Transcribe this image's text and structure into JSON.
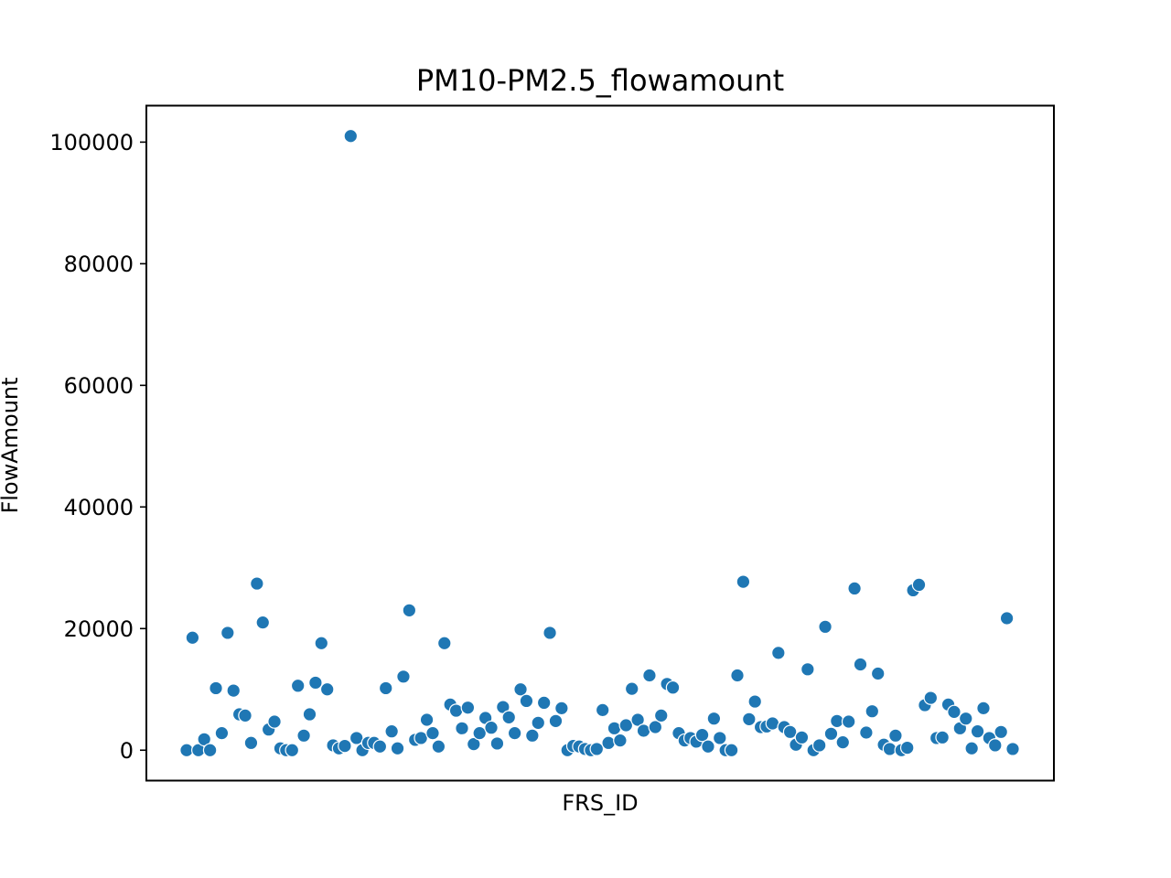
{
  "chart_data": {
    "type": "scatter",
    "title": "PM10-PM2.5_flowamount",
    "xlabel": "FRS_ID",
    "ylabel": "FlowAmount",
    "x_tick_labels_shown": false,
    "ylim": [
      -5000,
      106000
    ],
    "yticks": [
      0,
      20000,
      40000,
      60000,
      80000,
      100000
    ],
    "ytick_labels": [
      "0",
      "20000",
      "40000",
      "60000",
      "80000",
      "100000"
    ],
    "grid": false,
    "legend": "none",
    "marker_color": "#1f77b4",
    "values": [
      0,
      18500,
      0,
      1800,
      0,
      10200,
      2800,
      19300,
      9800,
      5900,
      5700,
      1200,
      27400,
      21000,
      3400,
      4700,
      300,
      0,
      0,
      10600,
      2400,
      5900,
      11100,
      17600,
      10000,
      800,
      300,
      700,
      101000,
      2000,
      0,
      1200,
      1200,
      600,
      10200,
      3100,
      300,
      12100,
      23000,
      1700,
      2000,
      5000,
      2800,
      600,
      17600,
      7500,
      6500,
      3600,
      7000,
      1000,
      2800,
      5300,
      3700,
      1100,
      7100,
      5400,
      2800,
      10000,
      8100,
      2400,
      4500,
      7800,
      19300,
      4800,
      6900,
      0,
      700,
      600,
      200,
      0,
      200,
      6600,
      1200,
      3600,
      1600,
      4100,
      10100,
      5000,
      3200,
      12300,
      3800,
      5700,
      10900,
      10300,
      2800,
      1600,
      2000,
      1400,
      2500,
      600,
      5200,
      2000,
      0,
      0,
      12300,
      27700,
      5100,
      8000,
      3800,
      3900,
      4400,
      16000,
      3800,
      3000,
      900,
      2100,
      13300,
      0,
      800,
      20300,
      2700,
      4800,
      1300,
      4700,
      26600,
      14100,
      2900,
      6400,
      12600,
      900,
      200,
      2400,
      0,
      400,
      26300,
      27200,
      7400,
      8600,
      2000,
      2100,
      7500,
      6300,
      3600,
      5200,
      300,
      3100,
      6900,
      2000,
      800,
      3000,
      21700,
      200
    ]
  }
}
